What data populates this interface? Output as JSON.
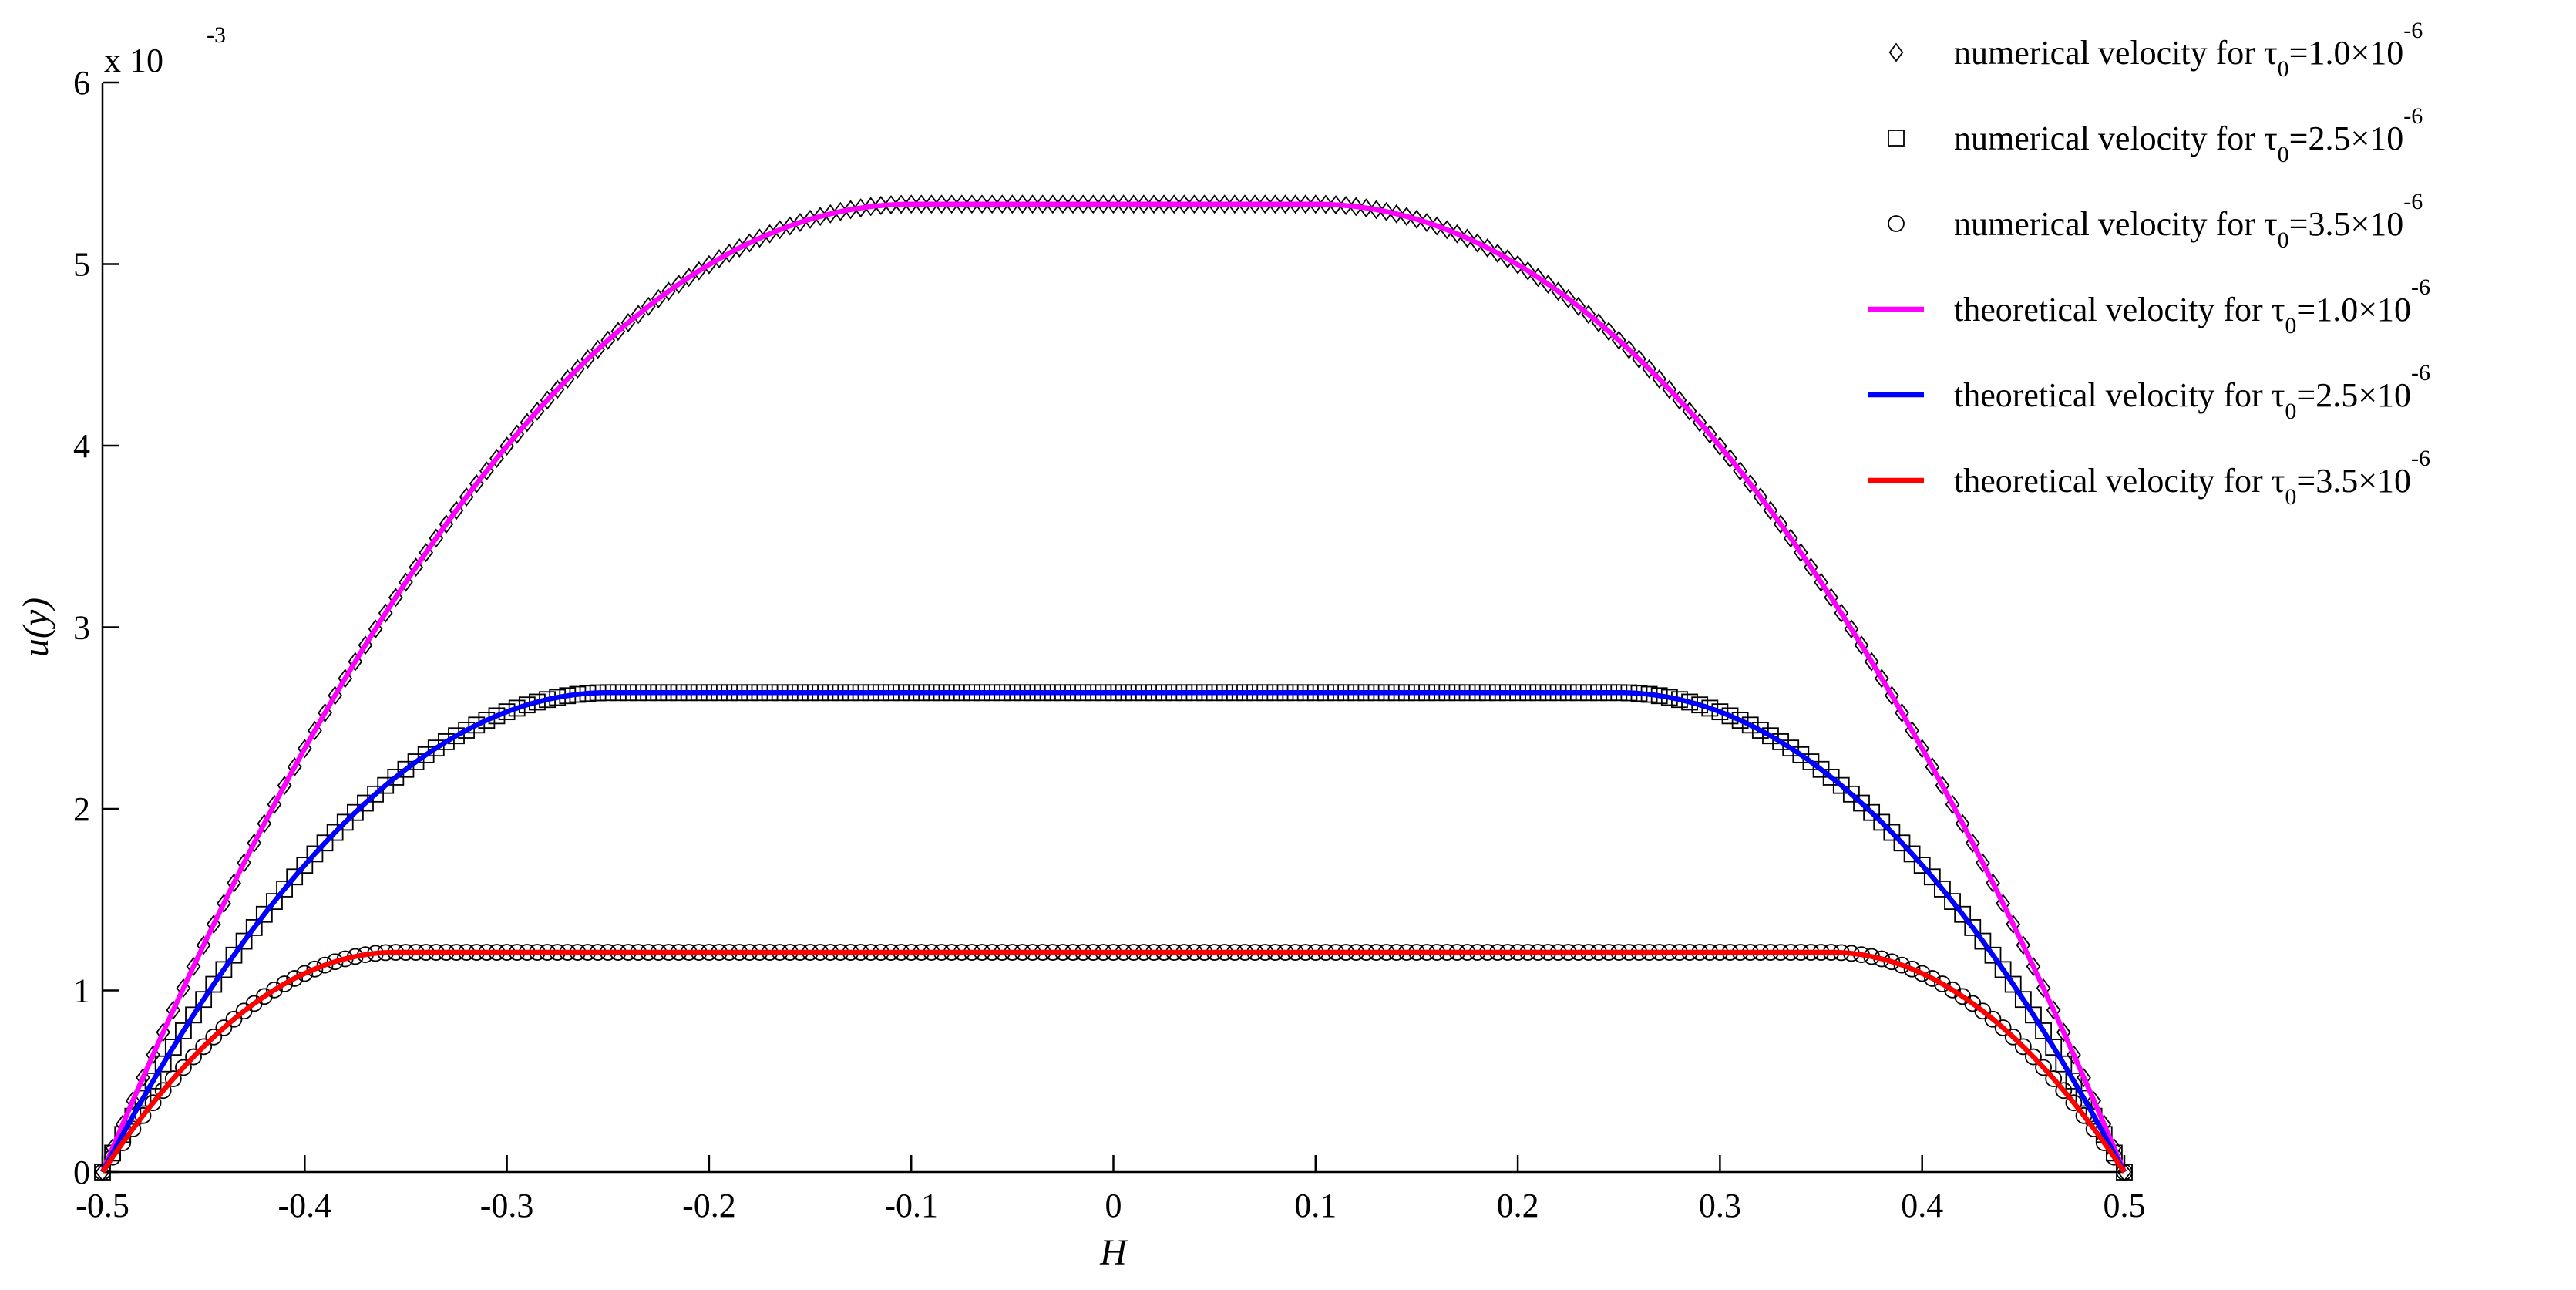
{
  "chart_data": {
    "type": "line",
    "xlabel": "H",
    "ylabel": "u(y)",
    "y_multiplier_label": {
      "base": "x 10",
      "exponent": "-3"
    },
    "xlim": [
      -0.5,
      0.5
    ],
    "ylim": [
      0,
      6
    ],
    "x_ticks": [
      -0.5,
      -0.4,
      -0.3,
      -0.2,
      -0.1,
      0,
      0.1,
      0.2,
      0.3,
      0.4,
      0.5
    ],
    "x_tick_labels": [
      "-0.5",
      "-0.4",
      "-0.3",
      "-0.2",
      "-0.1",
      "0",
      "0.1",
      "0.2",
      "0.3",
      "0.4",
      "0.5"
    ],
    "y_ticks": [
      0,
      1,
      2,
      3,
      4,
      5,
      6
    ],
    "y_tick_labels": [
      "0",
      "1",
      "2",
      "3",
      "4",
      "5",
      "6"
    ],
    "grid": false,
    "legend_position": "top-right",
    "series": [
      {
        "name": "numerical velocity for τ0=1.0×10-6",
        "legend_main": "numerical velocity for τ",
        "legend_sub": "0",
        "legend_mid": "=1.0×10",
        "legend_sup": "-6",
        "kind": "markers",
        "marker": "diamond",
        "color": "#000000",
        "plug_halfwidth": 0.1,
        "plug_value": 5.33
      },
      {
        "name": "numerical velocity for τ0=2.5×10-6",
        "legend_main": "numerical velocity for τ",
        "legend_sub": "0",
        "legend_mid": "=2.5×10",
        "legend_sup": "-6",
        "kind": "markers",
        "marker": "square",
        "color": "#000000",
        "plug_halfwidth": 0.25,
        "plug_value": 2.64
      },
      {
        "name": "numerical velocity for τ0=3.5×10-6",
        "legend_main": "numerical velocity for τ",
        "legend_sub": "0",
        "legend_mid": "=3.5×10",
        "legend_sup": "-6",
        "kind": "markers",
        "marker": "circle",
        "color": "#000000",
        "plug_halfwidth": 0.355,
        "plug_value": 1.21
      },
      {
        "name": "theoretical velocity for τ0=1.0×10-6",
        "legend_main": "theoretical velocity for τ",
        "legend_sub": "0",
        "legend_mid": "=1.0×10",
        "legend_sup": "-6",
        "kind": "line",
        "color": "#ff00ff",
        "plug_halfwidth": 0.1,
        "plug_value": 5.33
      },
      {
        "name": "theoretical velocity for τ0=2.5×10-6",
        "legend_main": "theoretical velocity for τ",
        "legend_sub": "0",
        "legend_mid": "=2.5×10",
        "legend_sup": "-6",
        "kind": "line",
        "color": "#0000ff",
        "plug_halfwidth": 0.25,
        "plug_value": 2.64
      },
      {
        "name": "theoretical velocity for τ0=3.5×10-6",
        "legend_main": "theoretical velocity for τ",
        "legend_sub": "0",
        "legend_mid": "=3.5×10",
        "legend_sup": "-6",
        "kind": "line",
        "color": "#ff0000",
        "plug_halfwidth": 0.355,
        "plug_value": 1.21
      }
    ]
  }
}
